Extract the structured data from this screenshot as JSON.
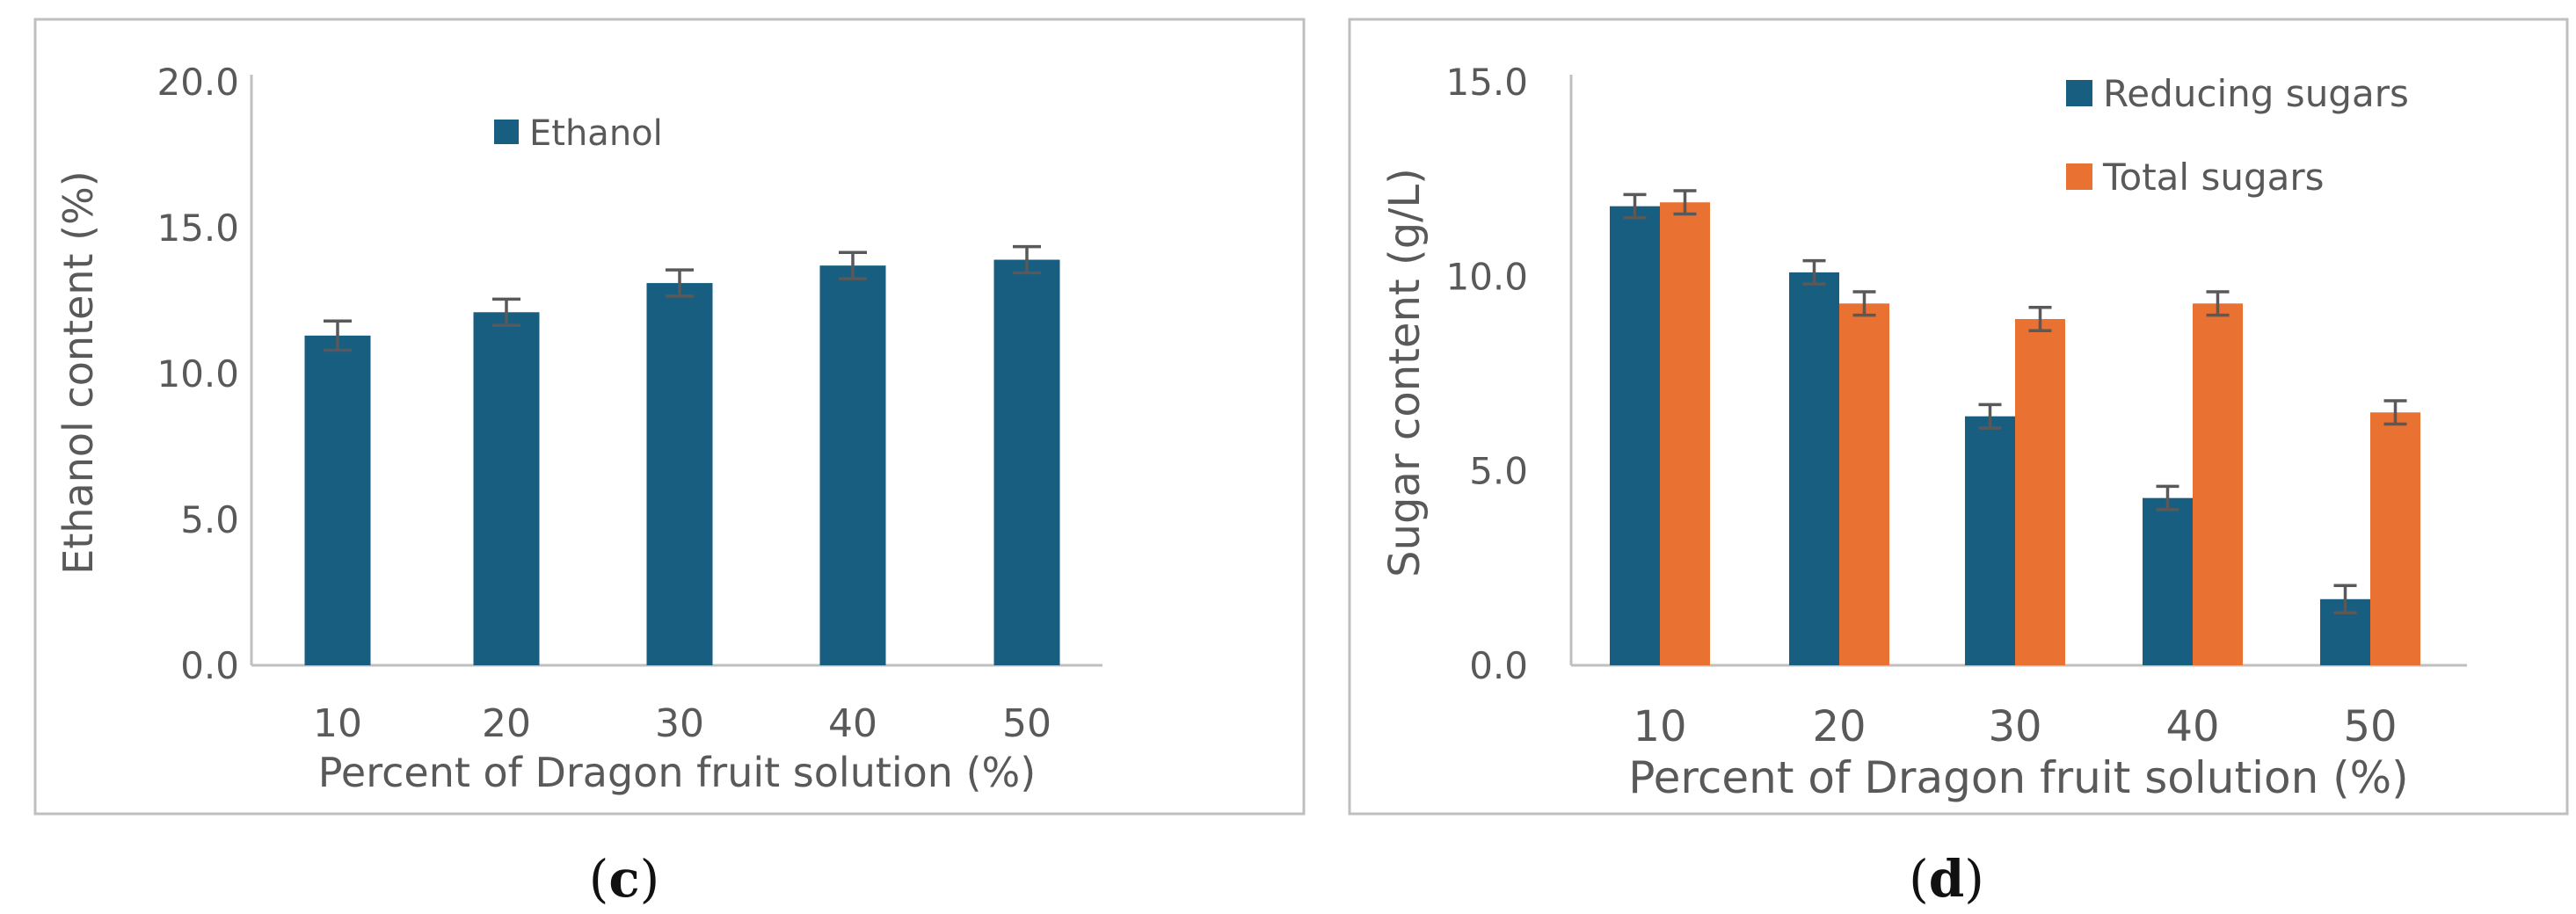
{
  "colors": {
    "reducing": "#175E80",
    "total": "#E97132",
    "ethanol": "#175E80",
    "error_bar": "#595959",
    "frame": "#BFBFBF",
    "axis_text": "#595959"
  },
  "chart_data": [
    {
      "panel": "(c)",
      "panel_letter": "c",
      "type": "bar",
      "title": "",
      "xlabel": "Percent of Dragon fruit solution (%)",
      "ylabel": "Ethanol content (%)",
      "ylim": [
        0,
        20
      ],
      "yticks": [
        "0.0",
        "5.0",
        "10.0",
        "15.0",
        "20.0"
      ],
      "ytick_values": [
        0,
        5,
        10,
        15,
        20
      ],
      "categories": [
        "10",
        "20",
        "30",
        "40",
        "50"
      ],
      "legend_position": "top-center",
      "series": [
        {
          "name": "Ethanol",
          "values": [
            11.3,
            12.1,
            13.1,
            13.7,
            13.9
          ],
          "errors": [
            0.5,
            0.45,
            0.45,
            0.45,
            0.45
          ]
        }
      ]
    },
    {
      "panel": "(d)",
      "panel_letter": "d",
      "type": "bar",
      "title": "",
      "xlabel": "Percent of Dragon fruit solution (%)",
      "ylabel": "Sugar content (g/L)",
      "ylim": [
        0,
        15
      ],
      "yticks": [
        "0.0",
        "5.0",
        "10.0",
        "15.0"
      ],
      "ytick_values": [
        0,
        5,
        10,
        15
      ],
      "categories": [
        "10",
        "20",
        "30",
        "40",
        "50"
      ],
      "legend_position": "top-right",
      "series": [
        {
          "name": "Reducing sugars",
          "values": [
            11.8,
            10.1,
            6.4,
            4.3,
            1.7
          ],
          "errors": [
            0.3,
            0.3,
            0.3,
            0.3,
            0.35
          ]
        },
        {
          "name": "Total sugars",
          "values": [
            11.9,
            9.3,
            8.9,
            9.3,
            6.5
          ],
          "errors": [
            0.3,
            0.3,
            0.3,
            0.3,
            0.3
          ]
        }
      ]
    }
  ]
}
